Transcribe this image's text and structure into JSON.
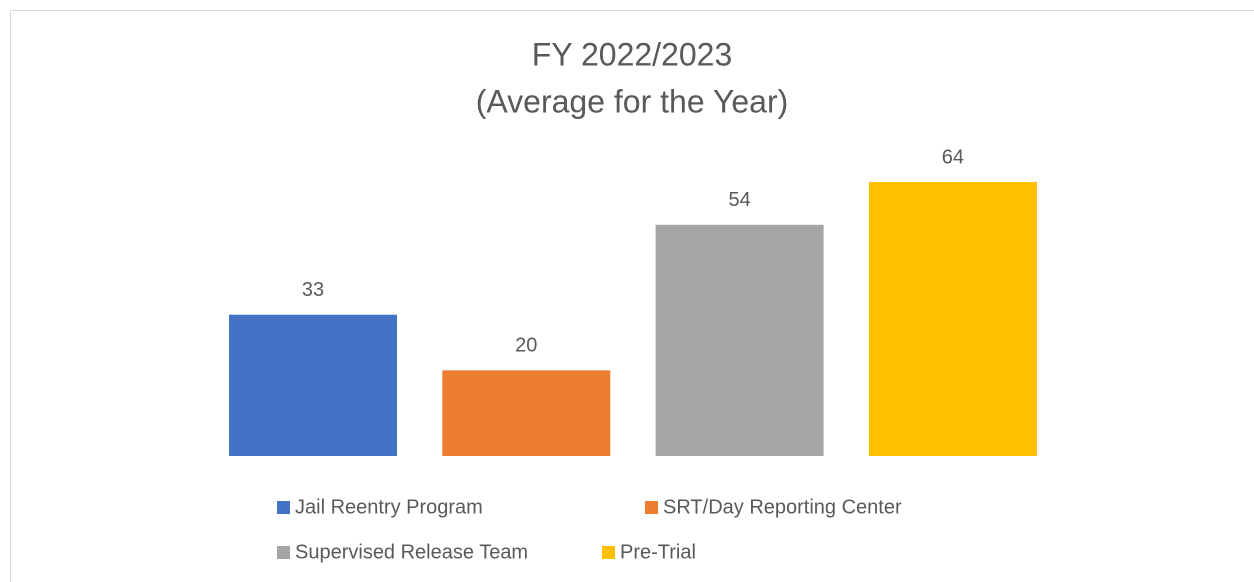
{
  "chart_data": {
    "type": "bar",
    "title": "FY 2022/2023",
    "subtitle": "(Average for the Year)",
    "categories": [
      null
    ],
    "series": [
      {
        "name": "Jail Reentry Program",
        "color": "#4472c4",
        "values": [
          33
        ]
      },
      {
        "name": "SRT/Day Reporting Center",
        "color": "#ed7d31",
        "values": [
          20
        ]
      },
      {
        "name": "Supervised Release Team",
        "color": "#a5a5a5",
        "values": [
          54
        ]
      },
      {
        "name": "Pre-Trial",
        "color": "#ffc000",
        "values": [
          64
        ]
      }
    ],
    "ylim": [
      0,
      70
    ]
  }
}
